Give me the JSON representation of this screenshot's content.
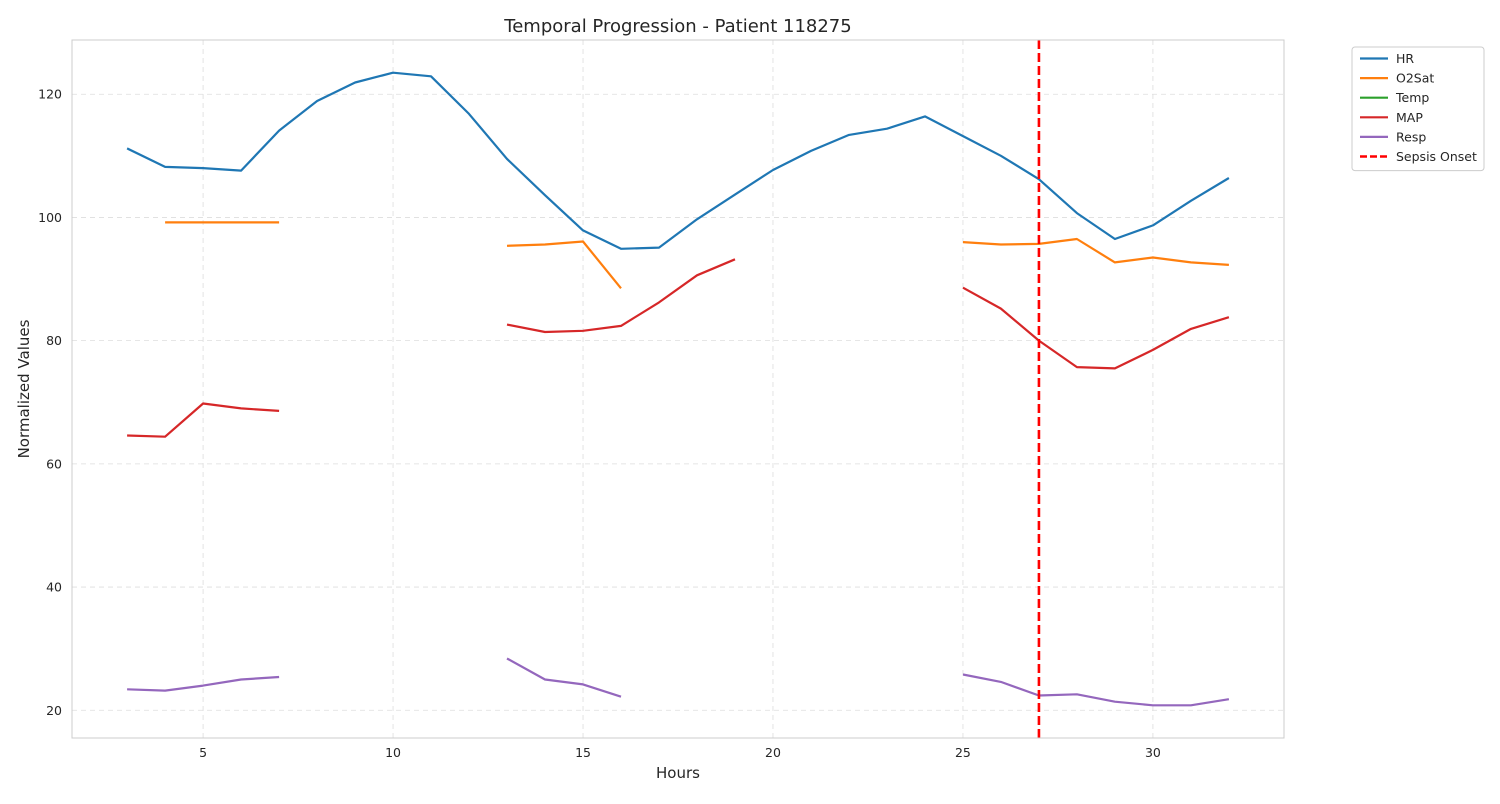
{
  "chart_data": {
    "type": "line",
    "title": "Temporal Progression - Patient 118275",
    "xlabel": "Hours",
    "ylabel": "Normalized Values",
    "xlim": [
      1.55,
      33.45
    ],
    "ylim": [
      15.5,
      128.8
    ],
    "xticks": [
      5,
      10,
      15,
      20,
      25,
      30
    ],
    "yticks": [
      20,
      40,
      60,
      80,
      100,
      120
    ],
    "grid": true,
    "legend_position": "outside-top-right",
    "series": [
      {
        "name": "HR",
        "color": "#1f77b4",
        "x": [
          3,
          4,
          5,
          6,
          7,
          8,
          9,
          10,
          11,
          12,
          13,
          14,
          15,
          16,
          17,
          18,
          19,
          20,
          21,
          22,
          23,
          24,
          25,
          26,
          27,
          28,
          29,
          30,
          31,
          32
        ],
        "y": [
          111.2,
          108.2,
          108.0,
          107.6,
          114.1,
          118.9,
          121.9,
          123.5,
          122.9,
          116.8,
          109.5,
          103.6,
          97.9,
          94.9,
          95.1,
          99.7,
          103.7,
          107.7,
          110.8,
          113.4,
          114.4,
          116.4,
          113.2,
          110.0,
          106.2,
          100.7,
          96.5,
          98.7,
          102.7,
          106.4
        ]
      },
      {
        "name": "O2Sat",
        "color": "#ff7f0e",
        "x": [
          3,
          4,
          5,
          6,
          7,
          8,
          9,
          10,
          11,
          12,
          13,
          14,
          15,
          16,
          17,
          18,
          19,
          20,
          21,
          22,
          23,
          24,
          25,
          26,
          27,
          28,
          29,
          30,
          31,
          32
        ],
        "y": [
          null,
          99.2,
          99.2,
          99.2,
          99.2,
          null,
          null,
          null,
          null,
          null,
          95.4,
          95.6,
          96.1,
          88.5,
          null,
          null,
          null,
          null,
          null,
          null,
          null,
          null,
          96.0,
          95.6,
          95.7,
          96.5,
          92.7,
          93.5,
          92.7,
          92.3
        ]
      },
      {
        "name": "Temp",
        "color": "#2ca02c",
        "x": [],
        "y": []
      },
      {
        "name": "MAP",
        "color": "#d62728",
        "x": [
          3,
          4,
          5,
          6,
          7,
          8,
          9,
          10,
          11,
          12,
          13,
          14,
          15,
          16,
          17,
          18,
          19,
          20,
          21,
          22,
          23,
          24,
          25,
          26,
          27,
          28,
          29,
          30,
          31,
          32
        ],
        "y": [
          64.6,
          64.4,
          69.8,
          69.0,
          68.6,
          null,
          null,
          null,
          null,
          null,
          82.6,
          81.4,
          81.6,
          82.4,
          86.2,
          90.6,
          93.2,
          null,
          null,
          null,
          null,
          null,
          88.6,
          85.2,
          80.0,
          75.7,
          75.5,
          78.5,
          81.9,
          83.8
        ]
      },
      {
        "name": "Resp",
        "color": "#9467bd",
        "x": [
          3,
          4,
          5,
          6,
          7,
          8,
          9,
          10,
          11,
          12,
          13,
          14,
          15,
          16,
          17,
          18,
          19,
          20,
          21,
          22,
          23,
          24,
          25,
          26,
          27,
          28,
          29,
          30,
          31,
          32
        ],
        "y": [
          23.4,
          23.2,
          24.0,
          25.0,
          25.4,
          null,
          null,
          null,
          null,
          null,
          28.4,
          25.0,
          24.2,
          22.2,
          null,
          null,
          null,
          null,
          null,
          null,
          null,
          null,
          25.8,
          24.6,
          22.4,
          22.6,
          21.4,
          20.8,
          20.8,
          21.8
        ]
      }
    ],
    "vlines": [
      {
        "name": "Sepsis Onset",
        "x": 27,
        "color": "#ff0000",
        "style": "dashed"
      }
    ]
  }
}
